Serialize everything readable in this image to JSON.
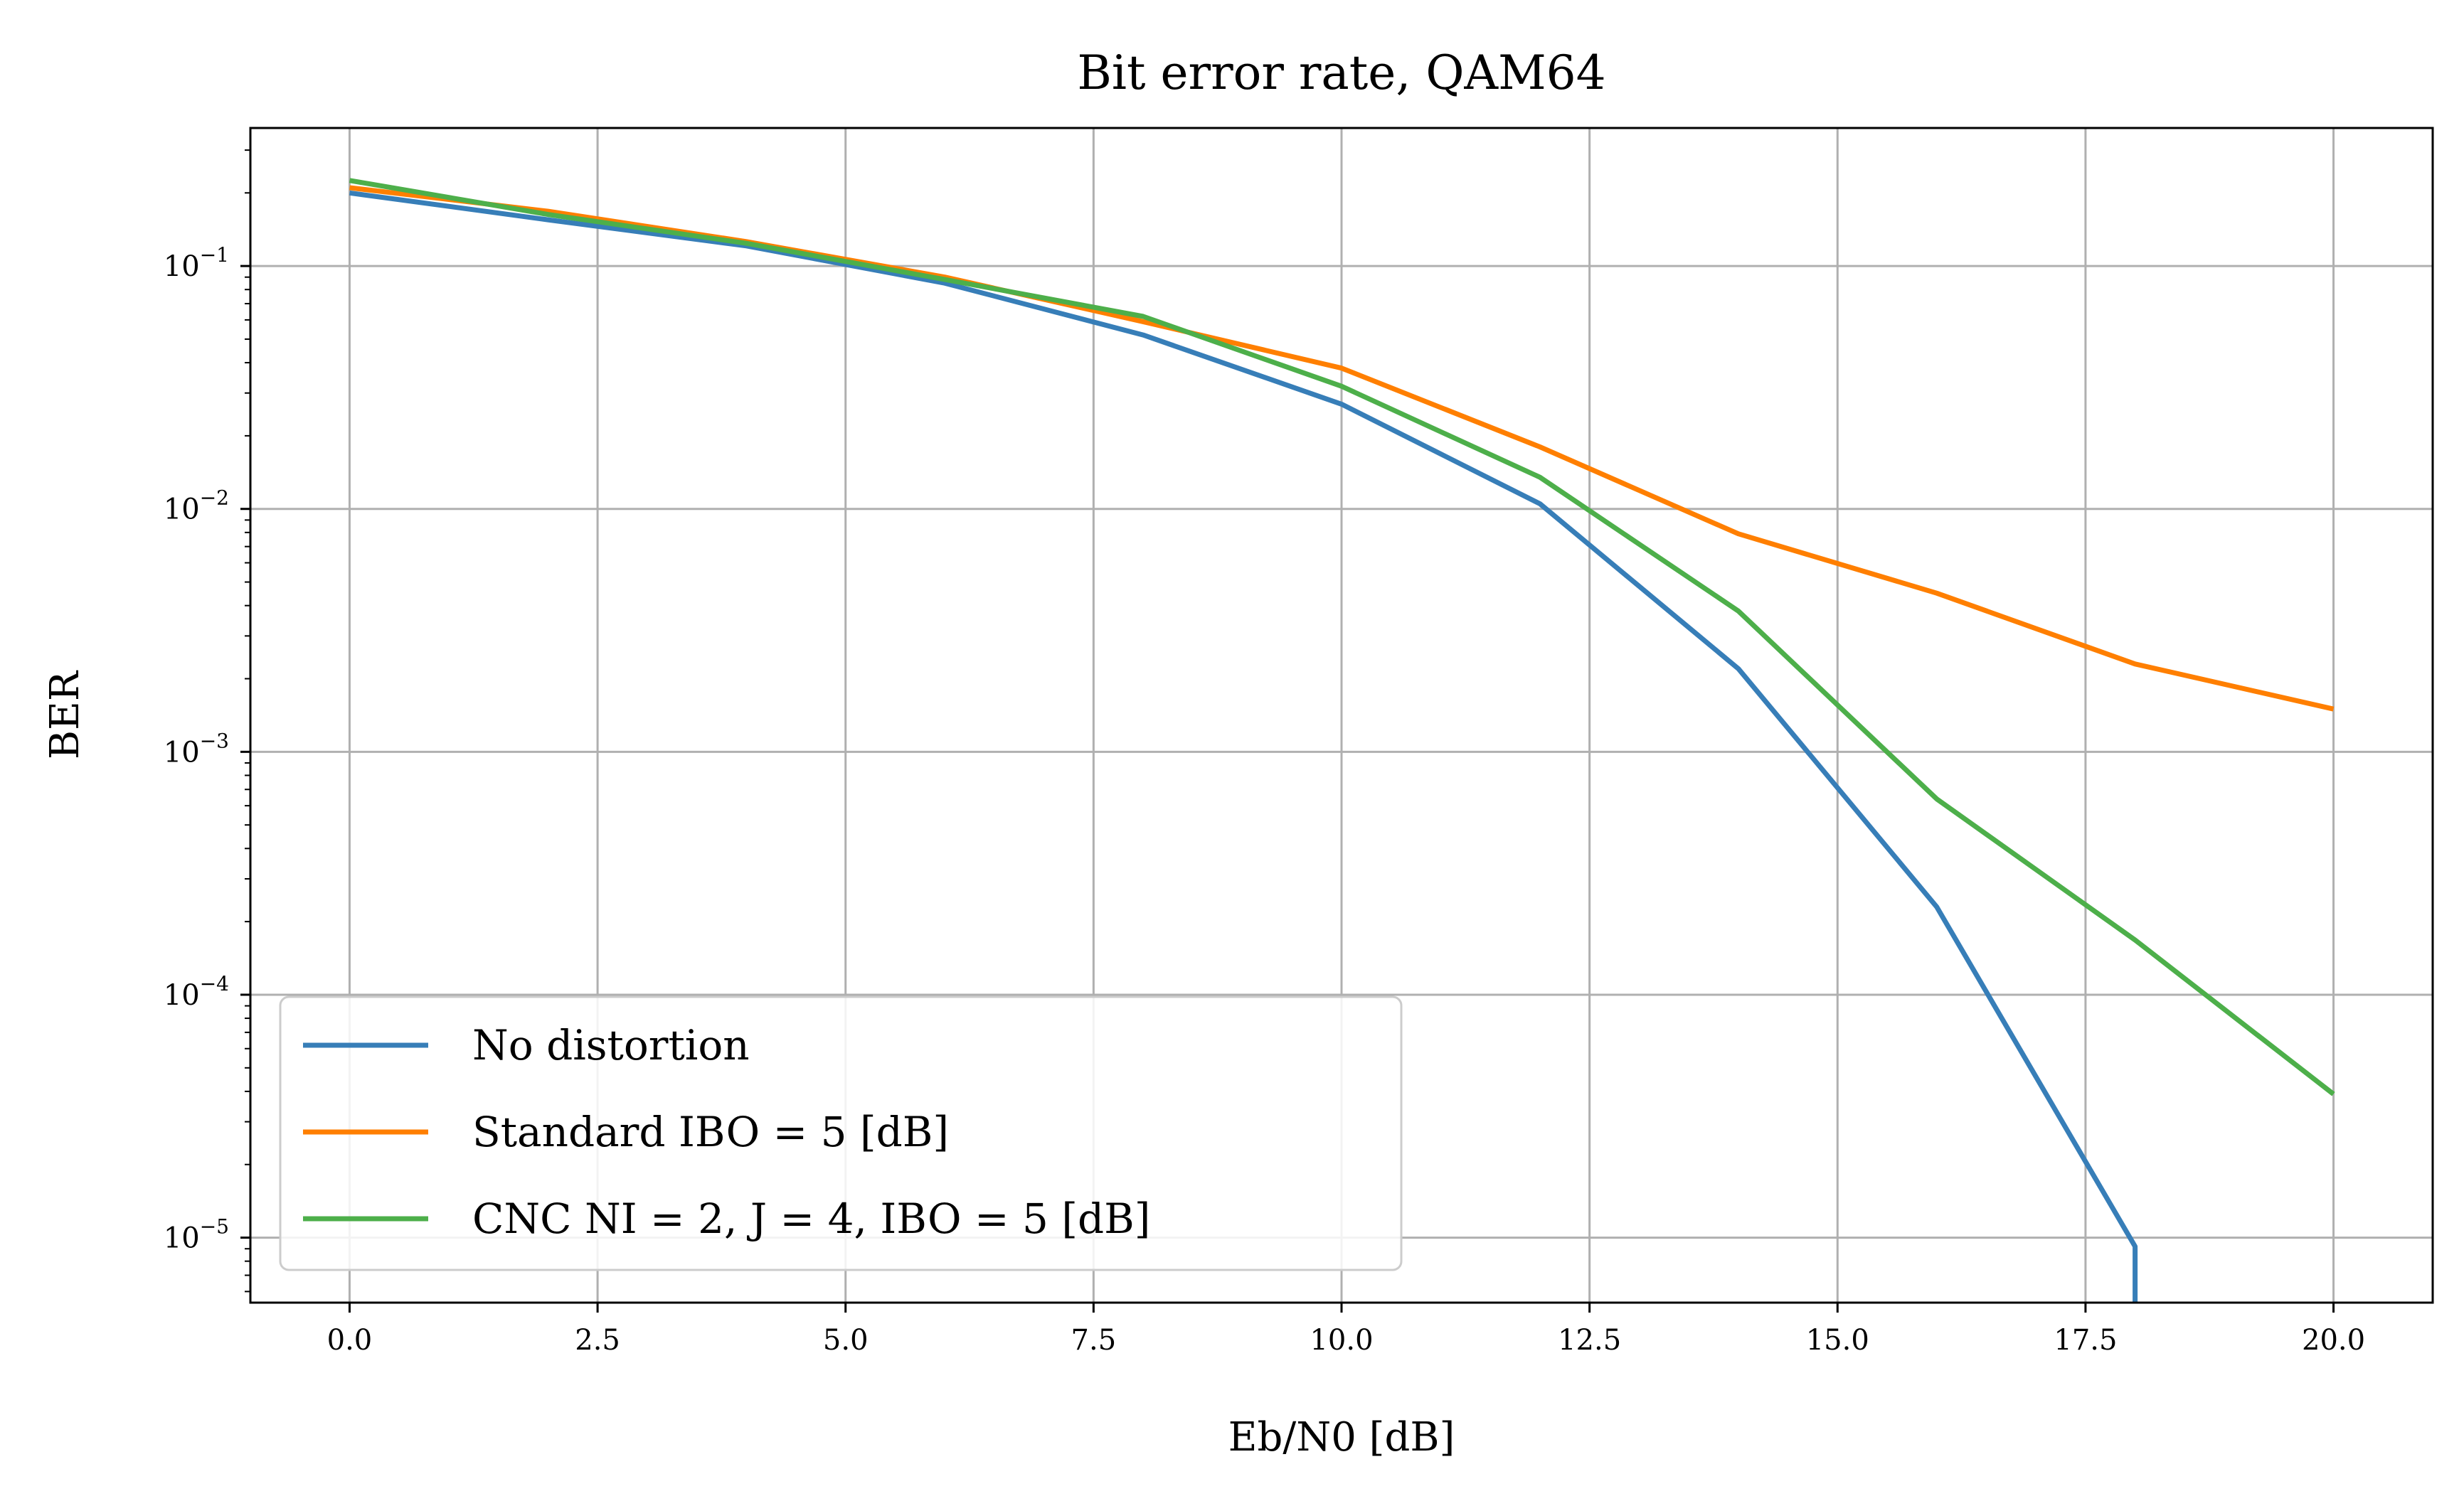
{
  "chart_data": {
    "type": "line",
    "title": "Bit error rate, QAM64",
    "xlabel": "Eb/N0 [dB]",
    "ylabel": "BER",
    "xlim": [
      -1,
      21
    ],
    "ylim": [
      5.4e-06,
      0.37
    ],
    "yscale": "log",
    "grid": true,
    "legend_position": "lower-left",
    "x_ticks": [
      "0.0",
      "2.5",
      "5.0",
      "7.5",
      "10.0",
      "12.5",
      "15.0",
      "17.5",
      "20.0"
    ],
    "y_ticks": [
      {
        "value": 1e-05,
        "base": "10",
        "exp": "−5"
      },
      {
        "value": 0.0001,
        "base": "10",
        "exp": "−4"
      },
      {
        "value": 0.001,
        "base": "10",
        "exp": "−3"
      },
      {
        "value": 0.01,
        "base": "10",
        "exp": "−2"
      },
      {
        "value": 0.1,
        "base": "10",
        "exp": "−1"
      }
    ],
    "x": [
      0,
      2,
      4,
      6,
      8,
      10,
      12,
      14,
      16,
      18,
      20
    ],
    "series": [
      {
        "name": "No distortion",
        "color": "#377eb8",
        "values": [
          0.2,
          0.155,
          0.121,
          0.085,
          0.052,
          0.027,
          0.0105,
          0.0022,
          0.00023,
          9.2e-06,
          null
        ],
        "drops_below_axis_at": 18
      },
      {
        "name": "Standard IBO = 5 [dB]",
        "color": "#ff7f00",
        "values": [
          0.21,
          0.168,
          0.126,
          0.09,
          0.059,
          0.038,
          0.018,
          0.0079,
          0.0045,
          0.0023,
          0.0015
        ]
      },
      {
        "name": "CNC NI = 2, J = 4, IBO = 5 [dB]",
        "color": "#4daf4a",
        "values": [
          0.225,
          0.163,
          0.124,
          0.088,
          0.062,
          0.032,
          0.0135,
          0.0038,
          0.00064,
          0.000168,
          3.9e-05
        ]
      }
    ]
  }
}
